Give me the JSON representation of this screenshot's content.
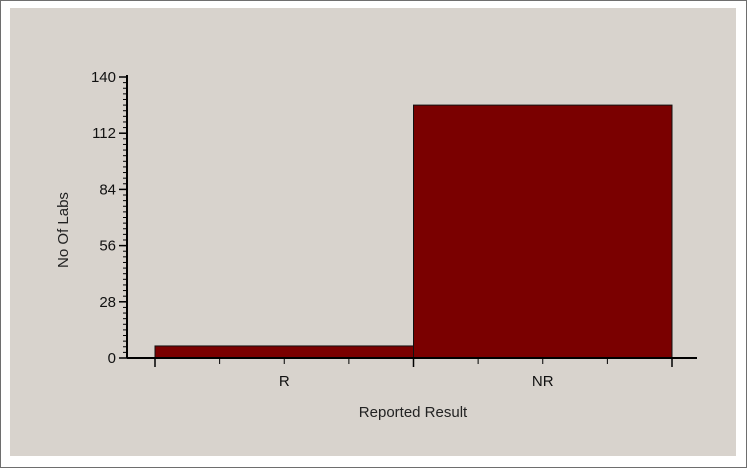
{
  "chart_data": {
    "type": "bar",
    "title": "",
    "xlabel": "Reported Result",
    "ylabel": "No Of Labs",
    "categories": [
      "R",
      "NR"
    ],
    "values": [
      6,
      126
    ],
    "ylim": [
      0,
      140
    ],
    "yticks": [
      0,
      28,
      56,
      84,
      112,
      140
    ],
    "grid": false,
    "bar_color": "#7a0000",
    "bar_edge_color": "#111111",
    "background_color": "#d8d3cd"
  }
}
